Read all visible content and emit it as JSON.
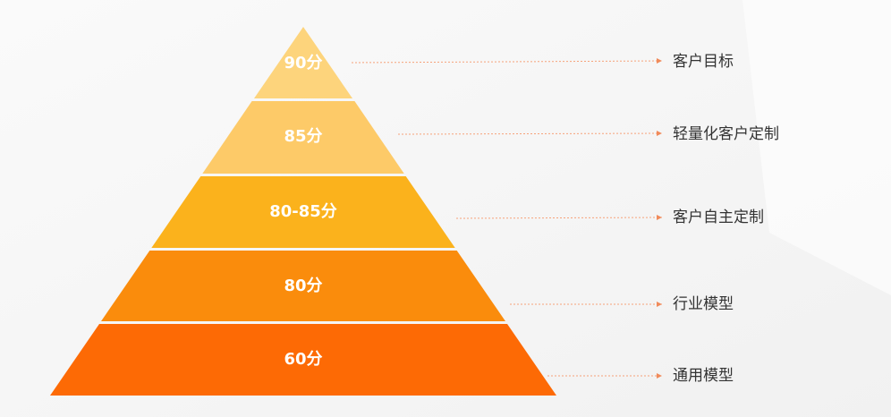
{
  "pyramid": {
    "levels": [
      {
        "score": "90分",
        "description": "客户目标"
      },
      {
        "score": "85分",
        "description": "轻量化客户定制"
      },
      {
        "score": "80-85分",
        "description": "客户自主定制"
      },
      {
        "score": "80分",
        "description": "行业模型"
      },
      {
        "score": "60分",
        "description": "通用模型"
      }
    ]
  }
}
